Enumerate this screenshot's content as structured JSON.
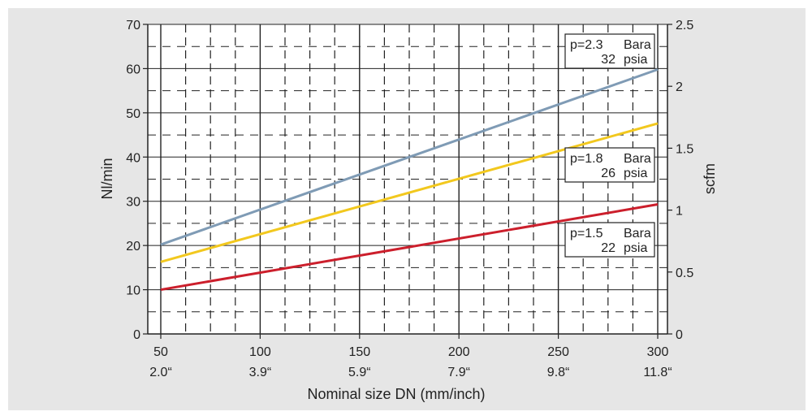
{
  "chart_data": {
    "type": "line",
    "x": [
      50,
      300
    ],
    "x_tick_labels": [
      {
        "value": 50,
        "mm": "50",
        "inch": "2.0“"
      },
      {
        "value": 100,
        "mm": "100",
        "inch": "3.9“"
      },
      {
        "value": 150,
        "mm": "150",
        "inch": "5.9“"
      },
      {
        "value": 200,
        "mm": "200",
        "inch": "7.9“"
      },
      {
        "value": 250,
        "mm": "250",
        "inch": "9.8“"
      },
      {
        "value": 300,
        "mm": "300",
        "inch": "11.8“"
      }
    ],
    "xlabel": "Nominal size DN  (mm/inch)",
    "ylabel": "Nl/min",
    "y2label": "scfm",
    "xlim": [
      50,
      300
    ],
    "ylim": [
      0,
      70
    ],
    "y2lim": [
      0,
      2.5
    ],
    "y_ticks": [
      "0",
      "10",
      "20",
      "30",
      "40",
      "50",
      "60",
      "70"
    ],
    "y2_ticks": [
      "0",
      "0.5",
      "1",
      "1.5",
      "2",
      "2.5"
    ],
    "grid": true,
    "series": [
      {
        "name": "p=2.3 Bara / 32 psia",
        "p_label": "p=2.3",
        "bar_unit": "Bara",
        "psi_value": "32",
        "psi_unit": "psia",
        "color": "#7f9bb5",
        "values": [
          20.2,
          59.8
        ]
      },
      {
        "name": "p=1.8 Bara / 26 psia",
        "p_label": "p=1.8",
        "bar_unit": "Bara",
        "psi_value": "26",
        "psi_unit": "psia",
        "color": "#f2c81e",
        "values": [
          16.3,
          47.6
        ]
      },
      {
        "name": "p=1.5 Bara / 22 psia",
        "p_label": "p=1.5",
        "bar_unit": "Bara",
        "psi_value": "22",
        "psi_unit": "psia",
        "color": "#cc1f2c",
        "values": [
          10.0,
          29.3
        ]
      }
    ]
  }
}
